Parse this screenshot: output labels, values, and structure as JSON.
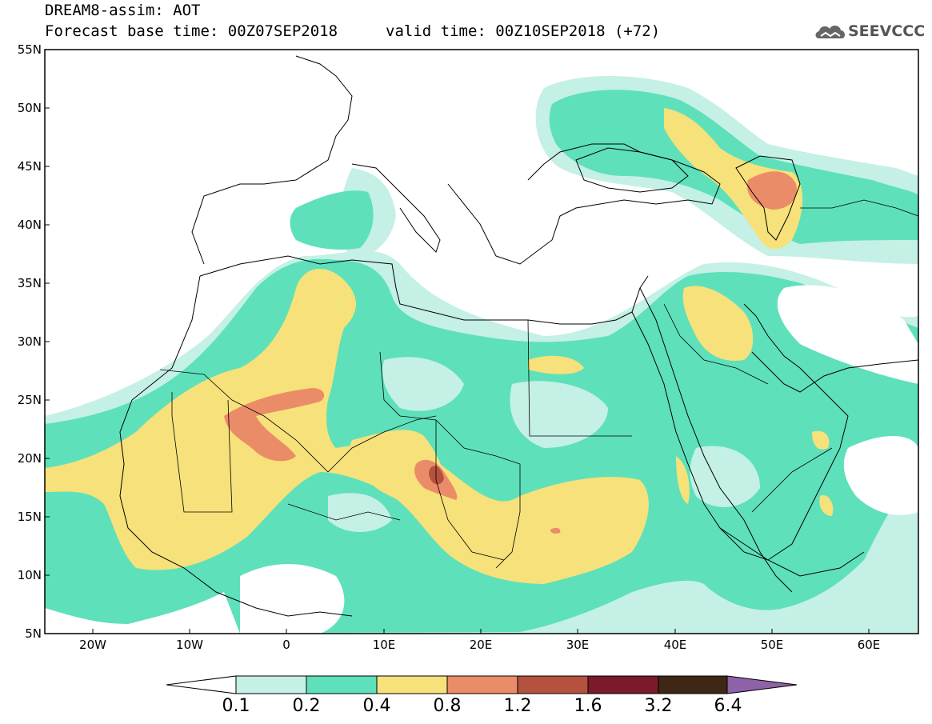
{
  "header": {
    "title": "DREAM8-assim: AOT",
    "base_time_line": "Forecast base time: 00Z07SEP2018",
    "valid_time_line": "valid time: 00Z10SEP2018 (+72)",
    "logo_text": "SEEVCCC"
  },
  "map": {
    "region": "North Africa, Mediterranean and Middle East",
    "lon_range": [
      -25,
      65
    ],
    "lat_range": [
      5,
      55
    ],
    "lat_ticks": [
      "55N",
      "50N",
      "45N",
      "40N",
      "35N",
      "30N",
      "25N",
      "20N",
      "15N",
      "10N",
      "5N"
    ],
    "lon_ticks": [
      "20W",
      "10W",
      "0",
      "10E",
      "20E",
      "30E",
      "40E",
      "50E",
      "60E"
    ]
  },
  "colorbar": {
    "levels": [
      "0.1",
      "0.2",
      "0.4",
      "0.8",
      "1.2",
      "1.6",
      "3.2",
      "6.4"
    ],
    "colors": [
      "#c4f0e6",
      "#5ee0bb",
      "#f6e17a",
      "#eb8c68",
      "#b5513f",
      "#7a1a2a",
      "#3e2714",
      "#8d62a6"
    ],
    "low_extension_color": "#ffffff"
  }
}
